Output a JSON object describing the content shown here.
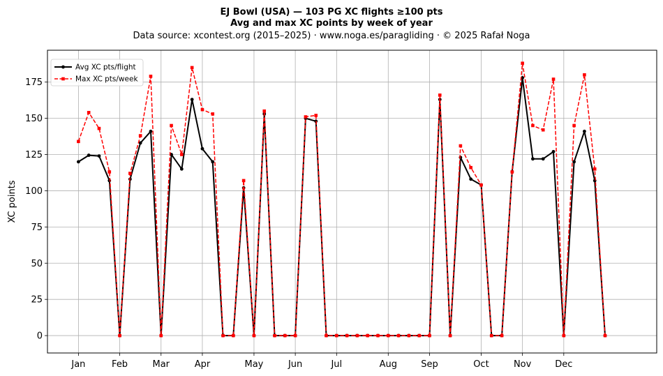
{
  "chart_data": {
    "type": "line",
    "title_line1": "EJ Bowl (USA)  —  103 PG XC flights ≥100 pts",
    "title_line2": "Avg and max XC points by week of year",
    "subtitle": "Data source: xcontest.org (2015–2025)  ·  www.noga.es/paragliding  ·  © 2025 Rafał Noga",
    "xlabel": "",
    "ylabel": "XC points",
    "xlim": [
      -3,
      56
    ],
    "ylim": [
      -12,
      197
    ],
    "x_ticks": [
      {
        "x": 0,
        "label": "Jan"
      },
      {
        "x": 4,
        "label": "Feb"
      },
      {
        "x": 8,
        "label": "Mar"
      },
      {
        "x": 12,
        "label": "Apr"
      },
      {
        "x": 17,
        "label": "May"
      },
      {
        "x": 21,
        "label": "Jun"
      },
      {
        "x": 25,
        "label": "Jul"
      },
      {
        "x": 30,
        "label": "Aug"
      },
      {
        "x": 34,
        "label": "Sep"
      },
      {
        "x": 39,
        "label": "Oct"
      },
      {
        "x": 43,
        "label": "Nov"
      },
      {
        "x": 47,
        "label": "Dec"
      }
    ],
    "y_ticks": [
      0,
      25,
      50,
      75,
      100,
      125,
      150,
      175
    ],
    "grid": true,
    "legend_position": "top-left",
    "x": [
      0,
      1,
      2,
      3,
      4,
      5,
      6,
      7,
      8,
      9,
      10,
      11,
      12,
      13,
      14,
      15,
      16,
      17,
      18,
      19,
      20,
      21,
      22,
      23,
      24,
      25,
      26,
      27,
      28,
      29,
      30,
      31,
      32,
      33,
      34,
      35,
      36,
      37,
      38,
      39,
      40,
      41,
      42,
      43,
      44,
      45,
      46,
      47,
      48,
      49,
      50,
      51
    ],
    "series": [
      {
        "name": "Avg XC pts/flight",
        "color": "#000000",
        "style": "solid-circle",
        "values": [
          120,
          124.5,
          124,
          107,
          0,
          108,
          133,
          141,
          0,
          125,
          115,
          163,
          129,
          120,
          0,
          0,
          102,
          0,
          153,
          0,
          0,
          0,
          150,
          148,
          0,
          0,
          0,
          0,
          0,
          0,
          0,
          0,
          0,
          0,
          0,
          163,
          0,
          123,
          108,
          104,
          0,
          0,
          113,
          178,
          122,
          122,
          127,
          0,
          120,
          141,
          107,
          0
        ]
      },
      {
        "name": "Max XC pts/week",
        "color": "#ff0000",
        "style": "dashed-square",
        "values": [
          134,
          154,
          143,
          113,
          0,
          112,
          138,
          179,
          0,
          145,
          125,
          185,
          156,
          153,
          0,
          0,
          107,
          0,
          155,
          0,
          0,
          0,
          151,
          152,
          0,
          0,
          0,
          0,
          0,
          0,
          0,
          0,
          0,
          0,
          0,
          166,
          0,
          131,
          116,
          104,
          0,
          0,
          113,
          188,
          145,
          142,
          177,
          0,
          145,
          180,
          115,
          0
        ]
      }
    ]
  }
}
